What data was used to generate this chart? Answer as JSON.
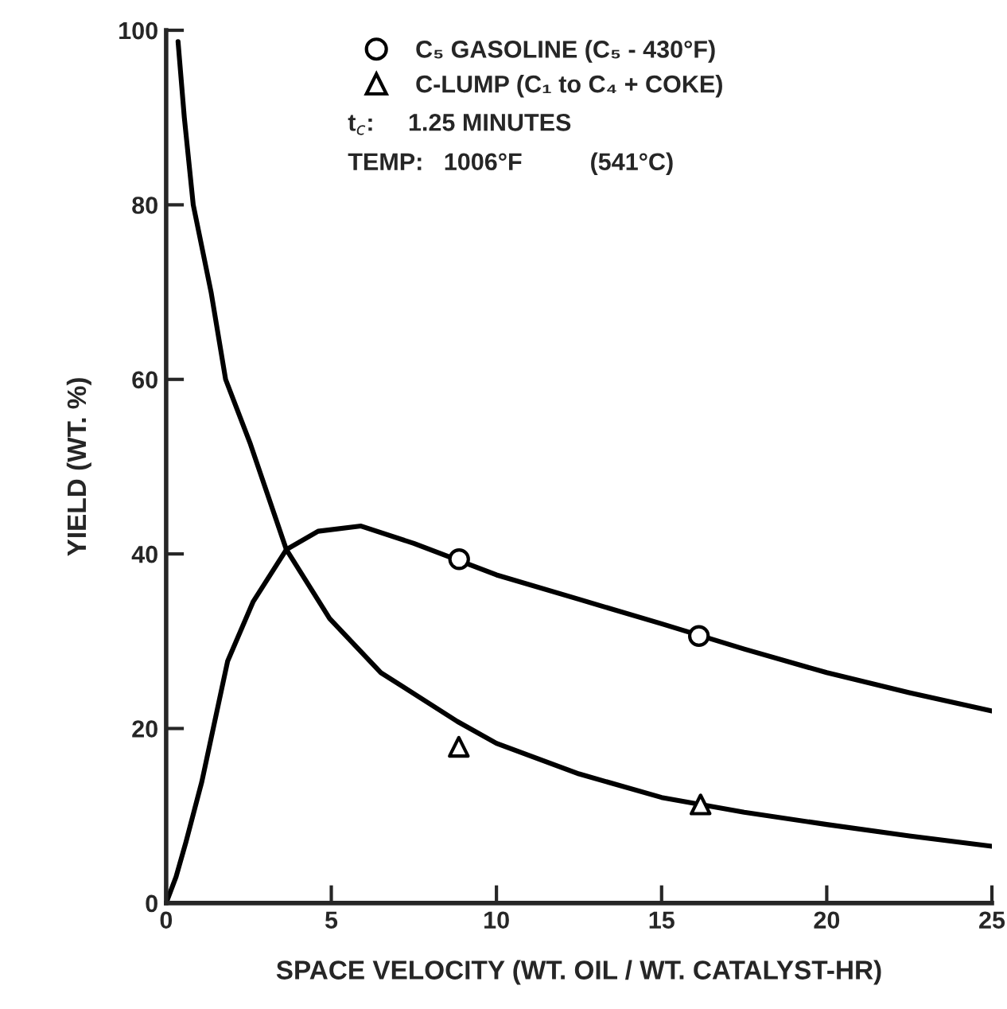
{
  "chart_data": {
    "type": "line",
    "xlabel": "SPACE VELOCITY (WT. OIL / WT. CATALYST-HR)",
    "ylabel": "YIELD (WT. %)",
    "xlim": [
      0,
      25
    ],
    "ylim": [
      0,
      100
    ],
    "xticks": [
      0,
      5,
      10,
      15,
      20,
      25
    ],
    "yticks": [
      0,
      20,
      40,
      60,
      80,
      100
    ],
    "grid": false,
    "legend": "top",
    "annotations": [
      "t$_{c}$:     1.25 MINUTES",
      "TEMP:   1006°F          (541°C)"
    ],
    "series": [
      {
        "name": "C₅ GASOLINE (C₅ - 430°F)",
        "type": "scatter",
        "marker": "circle",
        "color": "#000000",
        "x": [
          8.87,
          16.13
        ],
        "values": [
          39.4,
          30.6
        ]
      },
      {
        "name": "C-LUMP (C₁ to C₄ + COKE)",
        "type": "scatter",
        "marker": "triangle",
        "color": "#000000",
        "x": [
          8.86,
          16.18
        ],
        "values": [
          17.9,
          11.3
        ]
      },
      {
        "color": "#000000",
        "x": [
          0,
          0.3,
          0.6,
          1.08,
          1.86,
          2.63,
          3.64,
          4.6,
          5.9,
          7.5,
          10,
          12.5,
          15,
          17.5,
          20,
          22.5,
          25
        ],
        "values": [
          0,
          3,
          7,
          13.9,
          27.7,
          34.5,
          40.5,
          42.6,
          43.2,
          41.2,
          37.6,
          34.8,
          32,
          29.1,
          26.4,
          24.1,
          22
        ]
      },
      {
        "color": "#000000",
        "x": [
          0.36,
          0.55,
          0.82,
          1.36,
          1.8,
          2.55,
          3.64,
          4.95,
          6.5,
          8.82,
          10,
          12.5,
          15,
          17.5,
          20,
          22.5,
          25
        ],
        "values": [
          98.7,
          90,
          80,
          70,
          60,
          52.6,
          40.5,
          32.6,
          26.4,
          20.8,
          18.3,
          14.8,
          12.1,
          10.4,
          9,
          7.7,
          6.5
        ]
      }
    ]
  }
}
